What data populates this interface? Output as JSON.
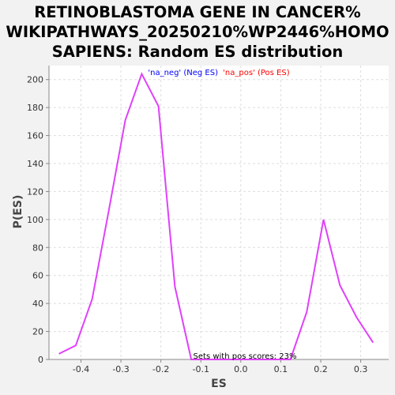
{
  "chart_data": {
    "type": "line",
    "title_lines": [
      "RETINOBLASTOMA GENE IN CANCER%",
      "WIKIPATHWAYS_20250210%WP2446%HOMO",
      "SAPIENS: Random ES distribution"
    ],
    "xlabel": "ES",
    "ylabel": "P(ES)",
    "xlim": [
      -0.48,
      0.37
    ],
    "ylim": [
      0,
      210
    ],
    "x_ticks": [
      -0.4,
      -0.3,
      -0.2,
      -0.1,
      0.0,
      0.1,
      0.2,
      0.3
    ],
    "x_tick_labels": [
      "-0.4",
      "-0.3",
      "-0.2",
      "-0.1",
      "0.0",
      "0.1",
      "0.2",
      "0.3"
    ],
    "y_ticks": [
      0,
      20,
      40,
      60,
      80,
      100,
      120,
      140,
      160,
      180,
      200
    ],
    "y_tick_labels": [
      "0",
      "20",
      "40",
      "60",
      "80",
      "100",
      "120",
      "140",
      "160",
      "180",
      "200"
    ],
    "grid": true,
    "legend_position": "top-center",
    "legend": [
      {
        "label": "'na_neg' (Neg ES)",
        "color": "#0000ff"
      },
      {
        "label": "'na_pos' (Pos ES)",
        "color": "#ff0000"
      }
    ],
    "annotation": "Sets with pos scores: 23%",
    "line_color": "#e040fb",
    "series": [
      {
        "x": [
          -0.455,
          -0.413,
          -0.372,
          -0.33,
          -0.289,
          -0.248,
          -0.206,
          -0.165,
          -0.124,
          -0.083,
          -0.041,
          0.0,
          0.041,
          0.083,
          0.124,
          0.165,
          0.207,
          0.248,
          0.29,
          0.331
        ],
        "values": [
          4,
          10,
          43,
          107,
          171,
          204,
          181,
          52,
          0,
          0,
          0,
          0,
          0,
          0,
          0,
          34,
          100,
          53,
          30,
          12
        ]
      }
    ]
  }
}
